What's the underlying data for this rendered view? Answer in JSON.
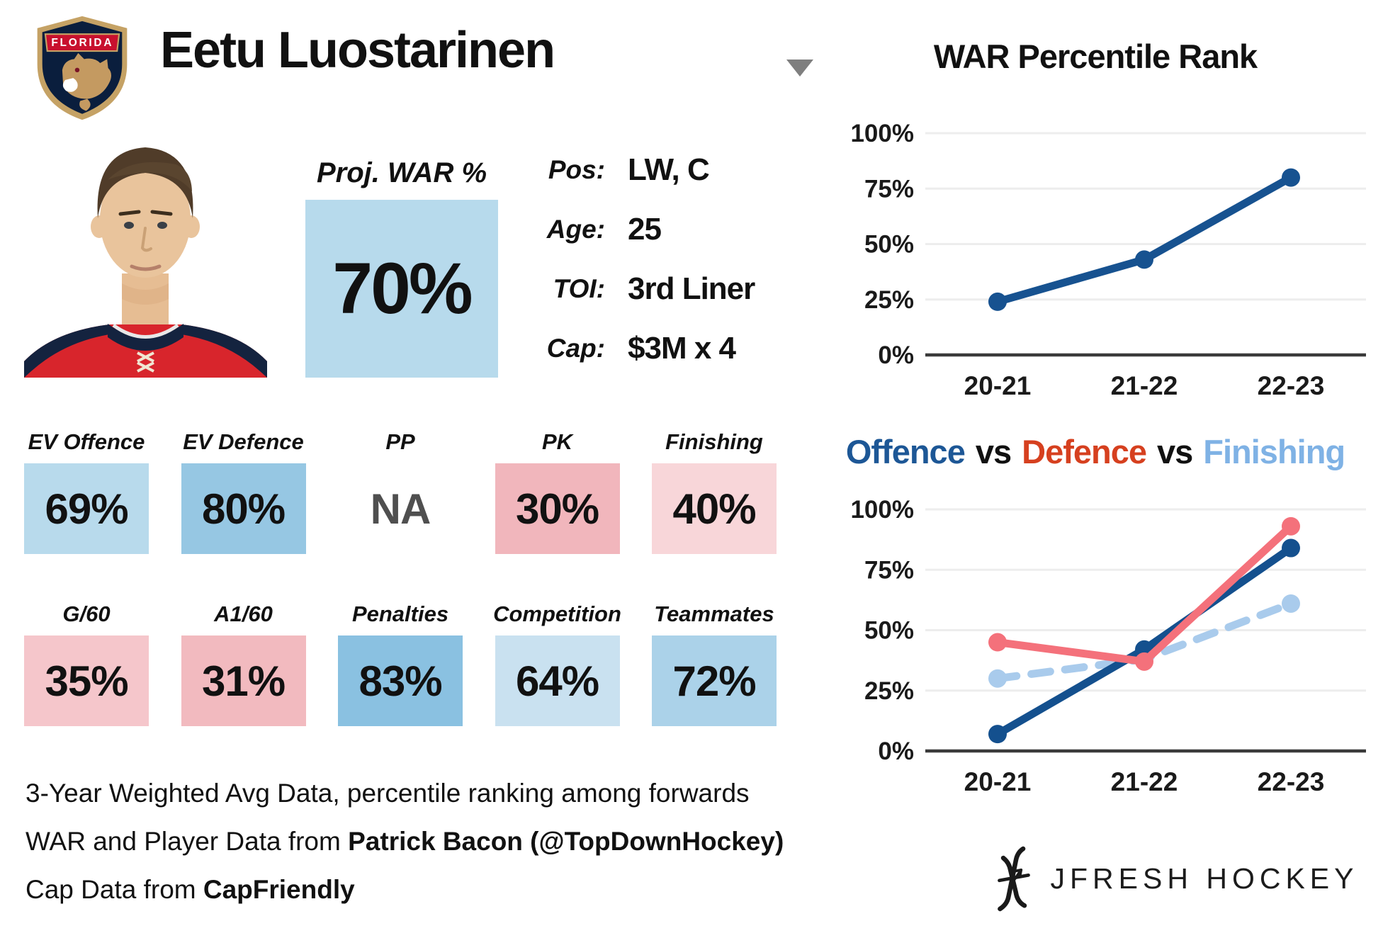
{
  "header": {
    "player_name": "Eetu Luostarinen",
    "team_banner": "FLORIDA"
  },
  "proj_war": {
    "label": "Proj. WAR %",
    "value": "70%",
    "bg": "#b7daec",
    "color": "#111111"
  },
  "info": {
    "rows": [
      {
        "label": "Pos:",
        "value": "LW, C"
      },
      {
        "label": "Age:",
        "value": "25"
      },
      {
        "label": "TOI:",
        "value": "3rd Liner"
      },
      {
        "label": "Cap:",
        "value": "$3M x 4"
      }
    ]
  },
  "stats": {
    "row1": [
      {
        "label": "EV Offence",
        "value": "69%",
        "bg": "#b8daec",
        "color": "#111111"
      },
      {
        "label": "EV Defence",
        "value": "80%",
        "bg": "#96c7e3",
        "color": "#111111"
      },
      {
        "label": "PP",
        "value": "NA",
        "bg": "#ffffff",
        "color": "#4f4f4f"
      },
      {
        "label": "PK",
        "value": "30%",
        "bg": "#f1b6bc",
        "color": "#111111"
      },
      {
        "label": "Finishing",
        "value": "40%",
        "bg": "#f8d6d9",
        "color": "#111111"
      }
    ],
    "row2": [
      {
        "label": "G/60",
        "value": "35%",
        "bg": "#f5c6cb",
        "color": "#111111"
      },
      {
        "label": "A1/60",
        "value": "31%",
        "bg": "#f2babf",
        "color": "#111111"
      },
      {
        "label": "Penalties",
        "value": "83%",
        "bg": "#8ac1e1",
        "color": "#111111"
      },
      {
        "label": "Competition",
        "value": "64%",
        "bg": "#c9e1f0",
        "color": "#111111"
      },
      {
        "label": "Teammates",
        "value": "72%",
        "bg": "#abd2e9",
        "color": "#111111"
      }
    ]
  },
  "footer": {
    "line1": "3-Year Weighted Avg Data, percentile ranking among forwards",
    "line2_pre": "WAR and Player Data from ",
    "line2_bold": "Patrick Bacon (@TopDownHockey)",
    "line3_pre": "Cap Data from ",
    "line3_bold": "CapFriendly"
  },
  "chart_data": [
    {
      "type": "line",
      "title": "WAR Percentile Rank",
      "x": [
        "20-21",
        "21-22",
        "22-23"
      ],
      "ylim": [
        0,
        100
      ],
      "yticks": [
        "0%",
        "25%",
        "50%",
        "75%",
        "100%"
      ],
      "grid": true,
      "legend_position": "none",
      "series": [
        {
          "name": "WAR Percentile",
          "values": [
            24,
            43,
            80
          ],
          "color": "#175290",
          "dash": false
        }
      ],
      "draw_order": [
        0
      ]
    },
    {
      "type": "line",
      "title": "Offence vs Defence vs Finishing",
      "title_parts": [
        {
          "text": "Offence",
          "color": "#1d5796"
        },
        {
          "text": "vs",
          "color": "#111111"
        },
        {
          "text": "Defence",
          "color": "#d6401f"
        },
        {
          "text": "vs",
          "color": "#111111"
        },
        {
          "text": "Finishing",
          "color": "#7fb2e5"
        }
      ],
      "x": [
        "20-21",
        "21-22",
        "22-23"
      ],
      "ylim": [
        0,
        100
      ],
      "yticks": [
        "0%",
        "25%",
        "50%",
        "75%",
        "100%"
      ],
      "grid": true,
      "legend_position": "title",
      "series": [
        {
          "name": "Offence",
          "values": [
            7,
            42,
            84
          ],
          "color": "#14508e",
          "dash": false
        },
        {
          "name": "Defence",
          "values": [
            45,
            37,
            93
          ],
          "color": "#f4717b",
          "dash": false
        },
        {
          "name": "Finishing",
          "values": [
            30,
            38,
            61
          ],
          "color": "#a9cbec",
          "dash": true
        }
      ],
      "draw_order": [
        2,
        0,
        1
      ]
    }
  ],
  "brand": {
    "name": "JFRESH HOCKEY"
  }
}
